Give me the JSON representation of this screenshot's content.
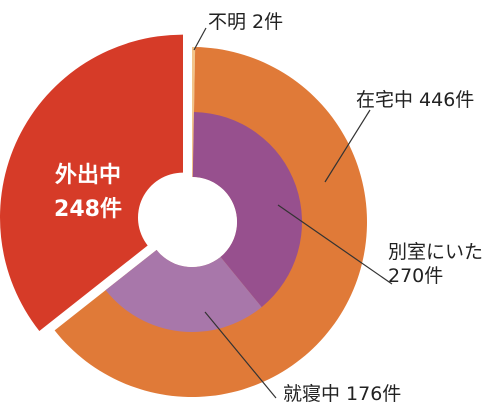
{
  "chart_data": {
    "type": "nested-donut",
    "rings": [
      {
        "categories": [
          "不明",
          "在宅中",
          "外出中"
        ],
        "values": [
          2,
          446,
          248
        ],
        "value_labels": [
          "2件",
          "446件",
          "248件"
        ],
        "colors": [
          "#f2c48a",
          "#e07a38",
          "#d63b28"
        ]
      },
      {
        "categories": [
          "別室にいた",
          "就寝中"
        ],
        "values": [
          270,
          176
        ],
        "value_labels": [
          "270件",
          "176件"
        ],
        "colors": [
          "#97508e",
          "#a877aa"
        ]
      }
    ]
  }
}
